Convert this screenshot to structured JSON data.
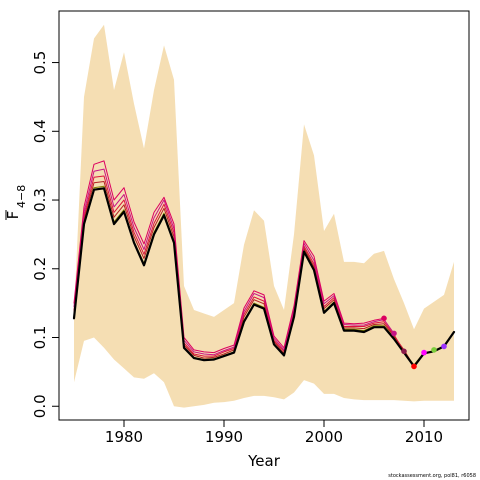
{
  "chart_data": {
    "type": "line",
    "title": "",
    "xlabel": "Year",
    "ylabel_main": "F",
    "ylabel_sub": "4−8",
    "xlim": [
      1973.5,
      2014.5
    ],
    "ylim": [
      -0.02,
      0.575
    ],
    "xticks": [
      1980,
      1990,
      2000,
      2010
    ],
    "xtick_labels": [
      "1980",
      "1990",
      "2000",
      "2010"
    ],
    "yticks": [
      0.0,
      0.1,
      0.2,
      0.3,
      0.4,
      0.5
    ],
    "ytick_labels": [
      "0.0",
      "0.1",
      "0.2",
      "0.3",
      "0.4",
      "0.5"
    ],
    "grid": false,
    "band": {
      "name": "confidence interval",
      "color": "#F5DEB3",
      "x": [
        1975,
        1976,
        1977,
        1978,
        1979,
        1980,
        1981,
        1982,
        1983,
        1984,
        1985,
        1986,
        1987,
        1988,
        1989,
        1990,
        1991,
        1992,
        1993,
        1994,
        1995,
        1996,
        1997,
        1998,
        1999,
        2000,
        2001,
        2002,
        2003,
        2004,
        2005,
        2006,
        2007,
        2008,
        2009,
        2010,
        2011,
        2012,
        2013
      ],
      "upper": [
        0.135,
        0.45,
        0.535,
        0.555,
        0.46,
        0.515,
        0.44,
        0.375,
        0.46,
        0.525,
        0.475,
        0.175,
        0.14,
        0.135,
        0.13,
        0.14,
        0.15,
        0.235,
        0.285,
        0.27,
        0.175,
        0.14,
        0.25,
        0.41,
        0.365,
        0.255,
        0.28,
        0.21,
        0.21,
        0.208,
        0.222,
        0.226,
        0.185,
        0.15,
        0.112,
        0.142,
        0.152,
        0.162,
        0.21
      ],
      "lower": [
        0.035,
        0.095,
        0.1,
        0.085,
        0.068,
        0.055,
        0.042,
        0.04,
        0.048,
        0.035,
        0.0,
        -0.002,
        0.0,
        0.002,
        0.005,
        0.006,
        0.008,
        0.012,
        0.015,
        0.015,
        0.013,
        0.01,
        0.02,
        0.038,
        0.033,
        0.018,
        0.018,
        0.012,
        0.01,
        0.009,
        0.009,
        0.009,
        0.009,
        0.008,
        0.007,
        0.008,
        0.008,
        0.008,
        0.008
      ]
    },
    "series": [
      {
        "color": "#000000",
        "width": 2.2,
        "x": [
          1975,
          1976,
          1977,
          1978,
          1979,
          1980,
          1981,
          1982,
          1983,
          1984,
          1985,
          1986,
          1987,
          1988,
          1989,
          1990,
          1991,
          1992,
          1993,
          1994,
          1995,
          1996,
          1997,
          1998,
          1999,
          2000,
          2001,
          2002,
          2003,
          2004,
          2005,
          2006,
          2007,
          2008,
          2009,
          2010,
          2011,
          2012,
          2013
        ],
        "values": [
          0.128,
          0.265,
          0.315,
          0.317,
          0.265,
          0.283,
          0.238,
          0.205,
          0.25,
          0.278,
          0.238,
          0.085,
          0.07,
          0.067,
          0.068,
          0.073,
          0.078,
          0.123,
          0.148,
          0.142,
          0.09,
          0.074,
          0.13,
          0.225,
          0.198,
          0.136,
          0.15,
          0.11,
          0.11,
          0.108,
          0.115,
          0.115,
          0.098,
          0.078,
          0.058,
          0.077,
          0.08,
          0.087,
          0.108
        ]
      },
      {
        "color": "#808000",
        "width": 1,
        "x": [
          1975,
          1976,
          1977,
          1978,
          1979,
          1980,
          1981,
          1982,
          1983,
          1984,
          1985,
          1986,
          1987,
          1988,
          1989,
          1990,
          1991,
          1992,
          1993,
          1994,
          1995,
          1996,
          1997,
          1998,
          1999,
          2000,
          2001,
          2002,
          2003,
          2004,
          2005,
          2006,
          2007,
          2008,
          2009,
          2010
        ],
        "values": [
          0.13,
          0.268,
          0.318,
          0.32,
          0.268,
          0.286,
          0.24,
          0.208,
          0.253,
          0.281,
          0.24,
          0.086,
          0.071,
          0.068,
          0.069,
          0.074,
          0.079,
          0.125,
          0.15,
          0.144,
          0.091,
          0.075,
          0.132,
          0.227,
          0.2,
          0.138,
          0.152,
          0.112,
          0.112,
          0.11,
          0.117,
          0.117,
          0.1,
          0.08,
          0.06,
          0.078
        ]
      },
      {
        "color": "#B22222",
        "width": 1,
        "x": [
          1975,
          1976,
          1977,
          1978,
          1979,
          1980,
          1981,
          1982,
          1983,
          1984,
          1985,
          1986,
          1987,
          1988,
          1989,
          1990,
          1991,
          1992,
          1993,
          1994,
          1995,
          1996,
          1997,
          1998,
          1999,
          2000,
          2001,
          2002,
          2003,
          2004,
          2005,
          2006,
          2007,
          2008,
          2009
        ],
        "values": [
          0.135,
          0.272,
          0.325,
          0.327,
          0.275,
          0.293,
          0.247,
          0.215,
          0.26,
          0.288,
          0.246,
          0.089,
          0.074,
          0.07,
          0.071,
          0.076,
          0.082,
          0.13,
          0.155,
          0.149,
          0.094,
          0.077,
          0.135,
          0.23,
          0.203,
          0.142,
          0.155,
          0.114,
          0.114,
          0.113,
          0.119,
          0.12,
          0.102,
          0.082,
          0.058
        ]
      },
      {
        "color": "#DC143C",
        "width": 1,
        "x": [
          1975,
          1976,
          1977,
          1978,
          1979,
          1980,
          1981,
          1982,
          1983,
          1984,
          1985,
          1986,
          1987,
          1988,
          1989,
          1990,
          1991,
          1992,
          1993,
          1994,
          1995,
          1996,
          1997,
          1998,
          1999,
          2000,
          2001,
          2002,
          2003,
          2004,
          2005,
          2006,
          2007,
          2008
        ],
        "values": [
          0.14,
          0.276,
          0.333,
          0.335,
          0.282,
          0.3,
          0.253,
          0.221,
          0.266,
          0.294,
          0.252,
          0.092,
          0.076,
          0.073,
          0.073,
          0.079,
          0.084,
          0.134,
          0.159,
          0.153,
          0.096,
          0.08,
          0.138,
          0.233,
          0.207,
          0.145,
          0.158,
          0.116,
          0.116,
          0.116,
          0.121,
          0.123,
          0.104,
          0.08
        ]
      },
      {
        "color": "#C71585",
        "width": 1,
        "x": [
          1975,
          1976,
          1977,
          1978,
          1979,
          1980,
          1981,
          1982,
          1983,
          1984,
          1985,
          1986,
          1987,
          1988,
          1989,
          1990,
          1991,
          1992,
          1993,
          1994,
          1995,
          1996,
          1997,
          1998,
          1999,
          2000,
          2001,
          2002,
          2003,
          2004,
          2005,
          2006,
          2007
        ],
        "values": [
          0.145,
          0.282,
          0.342,
          0.345,
          0.29,
          0.308,
          0.26,
          0.228,
          0.274,
          0.3,
          0.258,
          0.096,
          0.079,
          0.076,
          0.075,
          0.081,
          0.086,
          0.138,
          0.164,
          0.158,
          0.099,
          0.082,
          0.142,
          0.237,
          0.212,
          0.149,
          0.161,
          0.119,
          0.118,
          0.118,
          0.123,
          0.126,
          0.106
        ]
      },
      {
        "color": "#DC0060",
        "width": 1,
        "x": [
          1975,
          1976,
          1977,
          1978,
          1979,
          1980,
          1981,
          1982,
          1983,
          1984,
          1985,
          1986,
          1987,
          1988,
          1989,
          1990,
          1991,
          1992,
          1993,
          1994,
          1995,
          1996,
          1997,
          1998,
          1999,
          2000,
          2001,
          2002,
          2003,
          2004,
          2005,
          2006
        ],
        "values": [
          0.15,
          0.29,
          0.352,
          0.357,
          0.3,
          0.318,
          0.268,
          0.236,
          0.282,
          0.304,
          0.265,
          0.1,
          0.082,
          0.079,
          0.078,
          0.084,
          0.089,
          0.143,
          0.168,
          0.162,
          0.102,
          0.085,
          0.146,
          0.241,
          0.218,
          0.153,
          0.164,
          0.121,
          0.12,
          0.121,
          0.125,
          0.128
        ]
      }
    ],
    "endpoints": [
      {
        "x": 2006,
        "y": 0.128,
        "color": "#DC0060"
      },
      {
        "x": 2007,
        "y": 0.106,
        "color": "#C71585"
      },
      {
        "x": 2008,
        "y": 0.08,
        "color": "#8B1A4A"
      },
      {
        "x": 2009,
        "y": 0.058,
        "color": "#FF0000"
      },
      {
        "x": 2010,
        "y": 0.078,
        "color": "#FF00FF"
      },
      {
        "x": 2011,
        "y": 0.082,
        "color": "#7CCD3C"
      },
      {
        "x": 2012,
        "y": 0.087,
        "color": "#9B30FF"
      }
    ]
  },
  "footer": "stockassessment.org, pol81, r6058"
}
